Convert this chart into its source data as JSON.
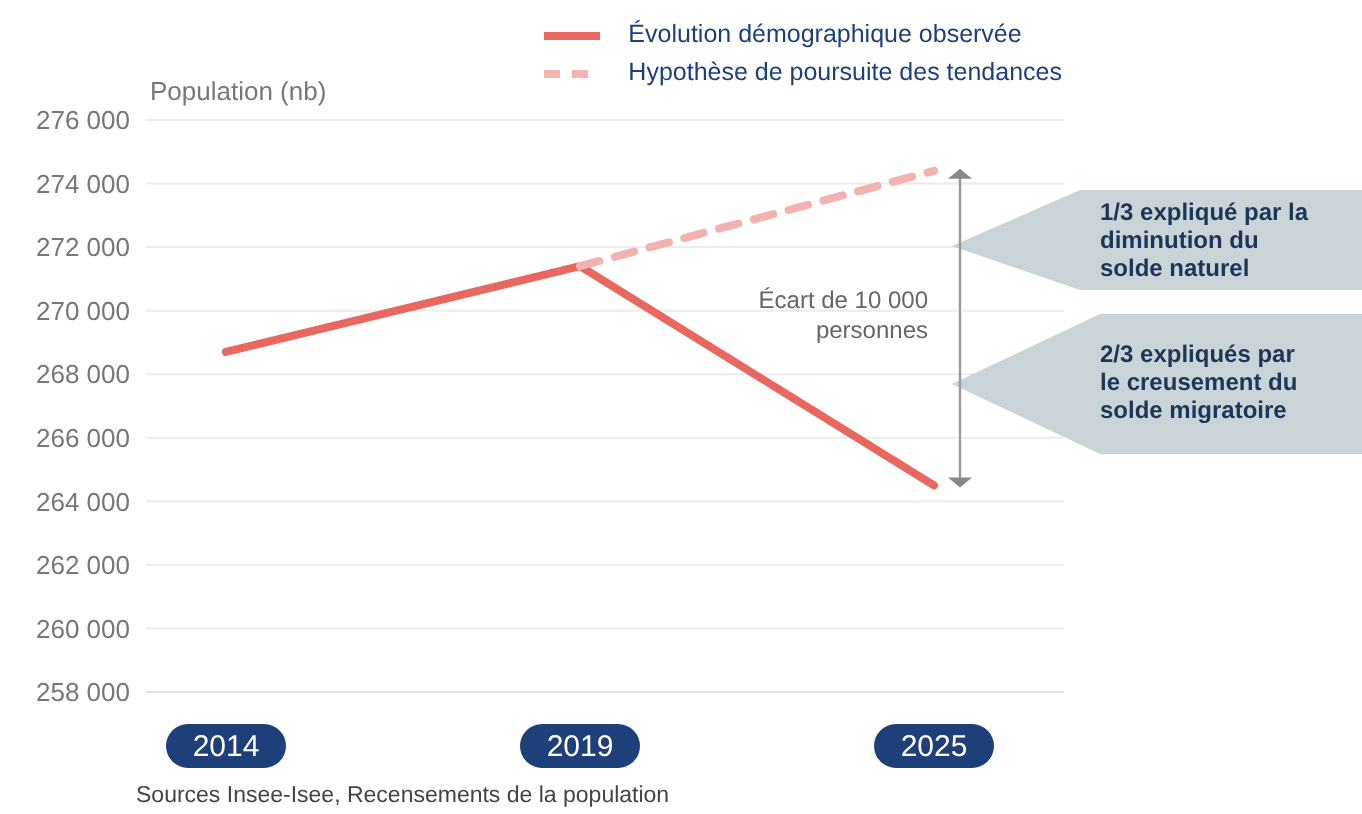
{
  "chart_data": {
    "type": "line",
    "ylabel": "Population (nb)",
    "categories": [
      "2014",
      "2019",
      "2025"
    ],
    "series": [
      {
        "name": "Évolution démographique observée",
        "color": "#e8675f",
        "values": [
          268700,
          271400,
          264500
        ],
        "line_style": "solid"
      },
      {
        "name": "Hypothèse de poursuite des tendances",
        "color": "#f2b3b0",
        "values": [
          null,
          271400,
          274400
        ],
        "line_style": "dashed"
      }
    ],
    "ylim": [
      258000,
      276000
    ],
    "yticks": [
      258000,
      260000,
      262000,
      264000,
      266000,
      268000,
      270000,
      272000,
      274000,
      276000
    ],
    "grid": "y",
    "legend": "top right",
    "annotations": [
      "Écart de 10 000 personnes",
      "1/3 expliqué par la diminution du solde naturel",
      "2/3 expliqués par le creusement du solde migratoire",
      "Sources Insee-Isee, Recensements de la population"
    ]
  }
}
